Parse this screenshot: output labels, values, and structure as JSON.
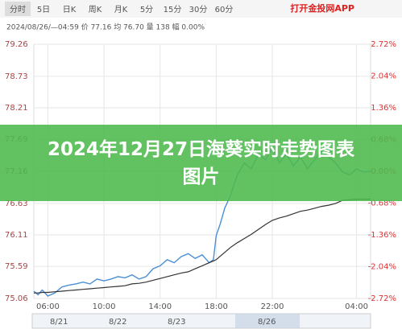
{
  "toolbar": {
    "tabs": [
      "分时",
      "5日",
      "日K",
      "周K",
      "月K",
      "5分",
      "15分",
      "30分",
      "60分"
    ],
    "brand": "打开金投网APP"
  },
  "banner": "2024年12月27日海葵实时走势图表图片",
  "navigator": {
    "dates": [
      "8/21",
      "8/22",
      "8/23",
      "8/26"
    ]
  },
  "chart_data": {
    "type": "line",
    "subtitle": "2024/08/26/—04:59 价 77.16 均 76.70 量 138 幅 0.00%",
    "x": [
      5.0,
      5.3,
      5.6,
      6.0,
      6.5,
      7.0,
      7.5,
      8.0,
      8.5,
      9.0,
      9.5,
      10.0,
      10.5,
      11.0,
      11.5,
      12.0,
      12.5,
      13.0,
      13.5,
      14.0,
      14.5,
      15.0,
      15.5,
      16.0,
      16.5,
      17.0,
      17.5,
      17.8,
      18.0,
      18.3,
      18.6,
      19.0,
      19.5,
      20.0,
      20.5,
      21.0,
      21.5,
      22.0,
      22.5,
      23.0,
      23.5,
      24.0,
      24.5,
      25.0,
      25.5,
      26.0,
      26.5,
      27.0,
      27.5,
      28.0,
      28.5,
      29.0
    ],
    "series": [
      {
        "name": "价",
        "color": "#4a8fd6",
        "values": [
          75.18,
          75.12,
          75.2,
          75.1,
          75.15,
          75.25,
          75.28,
          75.3,
          75.33,
          75.3,
          75.38,
          75.35,
          75.38,
          75.42,
          75.4,
          75.45,
          75.38,
          75.42,
          75.55,
          75.6,
          75.7,
          75.65,
          75.75,
          75.8,
          75.72,
          75.78,
          75.65,
          75.7,
          76.1,
          76.3,
          76.55,
          76.75,
          77.1,
          77.3,
          77.2,
          77.45,
          77.35,
          77.55,
          77.3,
          77.45,
          77.25,
          77.4,
          77.2,
          77.35,
          77.5,
          77.4,
          77.3,
          77.15,
          77.1,
          77.2,
          77.15,
          77.16
        ]
      },
      {
        "name": "均",
        "color": "#333333",
        "values": [
          75.15,
          75.15,
          75.16,
          75.16,
          75.17,
          75.18,
          75.19,
          75.2,
          75.21,
          75.22,
          75.23,
          75.24,
          75.25,
          75.26,
          75.27,
          75.3,
          75.31,
          75.33,
          75.36,
          75.39,
          75.42,
          75.45,
          75.48,
          75.5,
          75.55,
          75.6,
          75.65,
          75.68,
          75.7,
          75.76,
          75.82,
          75.9,
          75.98,
          76.05,
          76.12,
          76.2,
          76.28,
          76.35,
          76.39,
          76.42,
          76.46,
          76.5,
          76.52,
          76.55,
          76.58,
          76.6,
          76.63,
          76.68,
          76.69,
          76.7,
          76.7,
          76.7
        ]
      }
    ],
    "xlim": [
      5,
      29
    ],
    "xticks": [
      {
        "value": 6,
        "label": "06:00"
      },
      {
        "value": 10,
        "label": "10:00"
      },
      {
        "value": 14,
        "label": "14:00"
      },
      {
        "value": 18,
        "label": "18:00"
      },
      {
        "value": 22,
        "label": "22:00"
      },
      {
        "value": 28,
        "label": "04:00"
      }
    ],
    "ylim": [
      75.06,
      79.26
    ],
    "yticks": [
      79.26,
      78.73,
      78.21,
      77.69,
      77.16,
      76.63,
      76.11,
      75.59,
      75.06
    ],
    "y2lim": [
      -2.72,
      2.72
    ],
    "y2ticks": [
      {
        "value": 2.72,
        "label": "2.72%"
      },
      {
        "value": 2.04,
        "label": "2.04%"
      },
      {
        "value": 1.36,
        "label": "1.36%"
      },
      {
        "value": 0.68,
        "label": "0.68%"
      },
      {
        "value": 0,
        "label": "0.00%"
      },
      {
        "value": -0.68,
        "label": "-0.68%"
      },
      {
        "value": -1.36,
        "label": "-1.36%"
      },
      {
        "value": -2.04,
        "label": "-2.04%"
      },
      {
        "value": -2.72,
        "label": "-2.72%"
      }
    ],
    "grid": true
  }
}
